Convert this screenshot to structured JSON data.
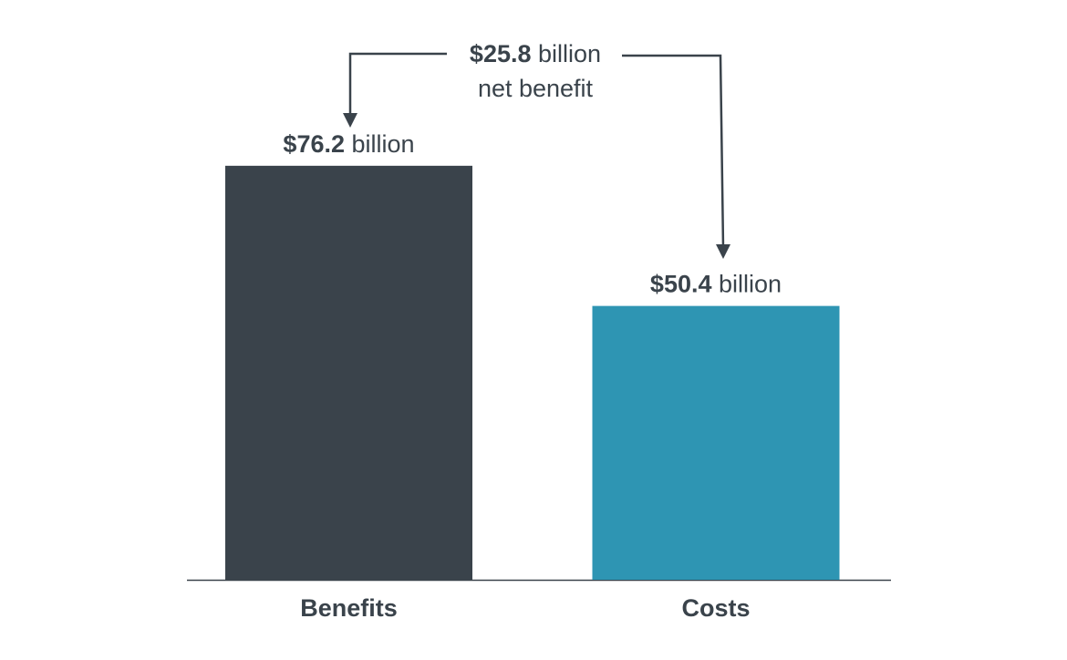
{
  "chart_data": {
    "type": "bar",
    "categories": [
      "Benefits",
      "Costs"
    ],
    "values": [
      76.2,
      50.4
    ],
    "value_labels": [
      "$76.2",
      "$50.4"
    ],
    "value_unit": "billion",
    "colors": [
      "#3a434b",
      "#2e95b3"
    ],
    "ylim": [
      0,
      100
    ],
    "annotation": {
      "value_label": "$25.8",
      "unit": "billion",
      "text": "net benefit"
    }
  }
}
